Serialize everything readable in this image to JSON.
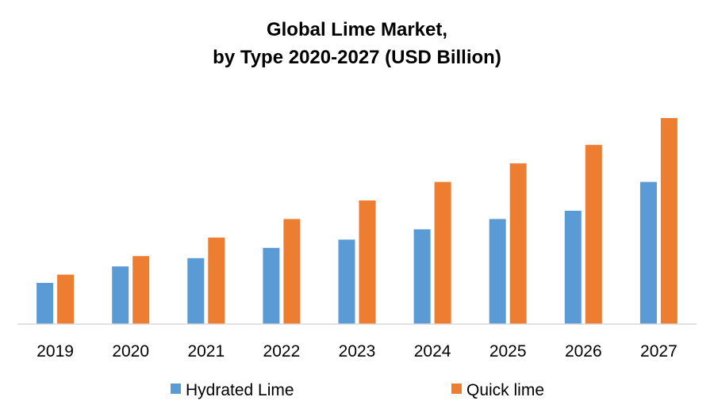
{
  "chart_data": {
    "type": "bar",
    "title_lines": [
      "Global Lime Market,",
      "by Type 2020-2027 (USD Billion)"
    ],
    "categories": [
      "2019",
      "2020",
      "2021",
      "2022",
      "2023",
      "2024",
      "2025",
      "2026",
      "2027"
    ],
    "series": [
      {
        "name": "Hydrated Lime",
        "color": "#5B9BD5",
        "values": [
          20,
          28,
          32,
          37,
          41,
          46,
          51,
          55,
          69
        ]
      },
      {
        "name": "Quick lime",
        "color": "#ED7D31",
        "values": [
          24,
          33,
          42,
          51,
          60,
          69,
          78,
          87,
          100
        ]
      }
    ],
    "xlabel": "",
    "ylabel": "",
    "ylim": [
      0,
      110
    ],
    "grid": false,
    "legend_position": "bottom"
  }
}
